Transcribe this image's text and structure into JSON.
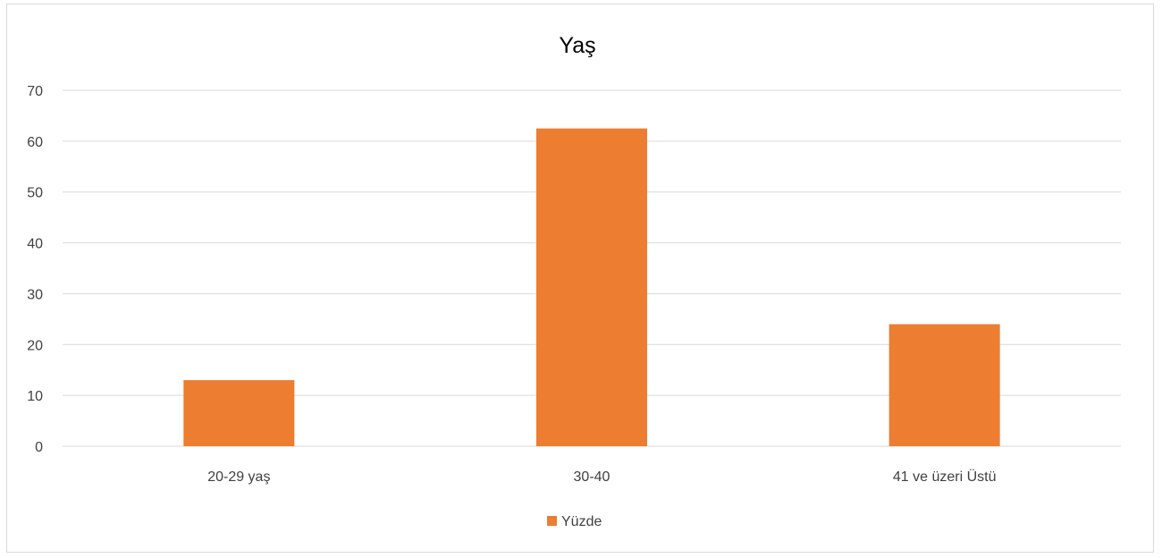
{
  "chart_data": {
    "type": "bar",
    "title": "Yaş",
    "categories": [
      "20-29 yaş",
      "30-40",
      "41 ve üzeri Üstü"
    ],
    "series": [
      {
        "name": "Yüzde",
        "values": [
          13,
          62.5,
          24
        ],
        "color": "#ed7d31"
      }
    ],
    "yticks": [
      0,
      10,
      20,
      30,
      40,
      50,
      60,
      70
    ],
    "ylim": [
      0,
      70
    ],
    "grid": true,
    "legend_position": "bottom",
    "gridline_color": "#d9d9d9"
  }
}
